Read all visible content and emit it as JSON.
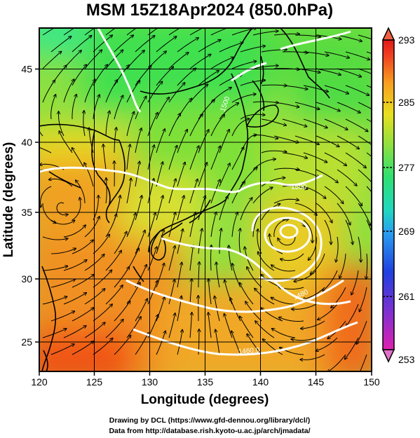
{
  "title": "MSM 15Z18Apr2024 (850.0hPa)",
  "map": {
    "xlabel": "Longitude (degrees)",
    "ylabel": "Latitude (degrees)",
    "lon_range": [
      120,
      150
    ],
    "lat_range": [
      22.4,
      48
    ],
    "lon_ticks": [
      "120",
      "125",
      "130",
      "135",
      "140",
      "145",
      "150"
    ],
    "lat_ticks": [
      "25",
      "30",
      "35",
      "40",
      "45"
    ],
    "contour_labels": [
      "1500",
      "1500",
      "1480",
      "1460.0"
    ]
  },
  "colorbar": {
    "ticks": [
      "293",
      "285",
      "277",
      "269",
      "261",
      "253"
    ],
    "min": 253,
    "max": 293,
    "colors": [
      "#e020b0",
      "#8030d0",
      "#2040e0",
      "#2aa0f0",
      "#20d8c0",
      "#30e070",
      "#8ee040",
      "#e8e020",
      "#f8a020",
      "#f04020",
      "#e01818"
    ]
  },
  "credits": {
    "line1": "Drawing by DCL (https://www.gfd-dennou.org/library/dcl/)",
    "line2": "Data from http://database.rish.kyoto-u.ac.jp/arch/jmadata/"
  }
}
